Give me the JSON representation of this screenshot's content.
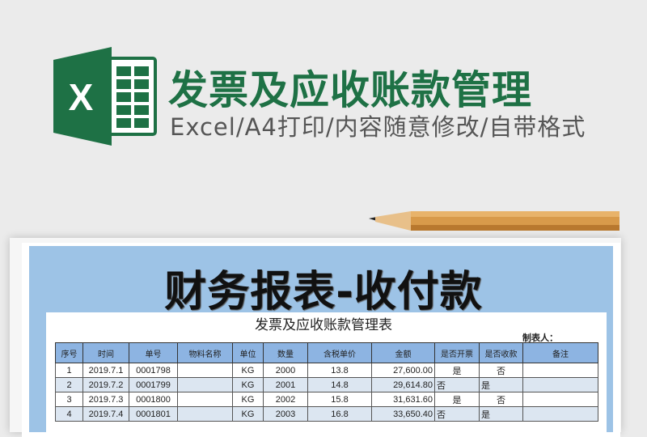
{
  "banner": {
    "title": "发票及应收账款管理",
    "subtitle": "Excel/A4打印/内容随意修改/自带格式",
    "logo_letter": "X",
    "accent": "#1e7145"
  },
  "sheet": {
    "big_title": "财务报表-收付款",
    "table_title": "发票及应收账款管理表",
    "maker_label": "制表人：",
    "columns": [
      "序号",
      "时间",
      "单号",
      "物料名称",
      "单位",
      "数量",
      "含税单价",
      "金额",
      "是否开票",
      "是否收款",
      "备注"
    ],
    "rows": [
      [
        "1",
        "2019.7.1",
        "0001798",
        "",
        "KG",
        "2000",
        "13.8",
        "27,600.00",
        "是",
        "否",
        ""
      ],
      [
        "2",
        "2019.7.2",
        "0001799",
        "",
        "KG",
        "2001",
        "14.8",
        "29,614.80",
        "否",
        "是",
        ""
      ],
      [
        "3",
        "2019.7.3",
        "0001800",
        "",
        "KG",
        "2002",
        "15.8",
        "31,631.60",
        "是",
        "否",
        ""
      ],
      [
        "4",
        "2019.7.4",
        "0001801",
        "",
        "KG",
        "2003",
        "16.8",
        "33,650.40",
        "否",
        "是",
        ""
      ]
    ],
    "header_color": "#8db4e2",
    "band_color": "#9dc3e6"
  }
}
